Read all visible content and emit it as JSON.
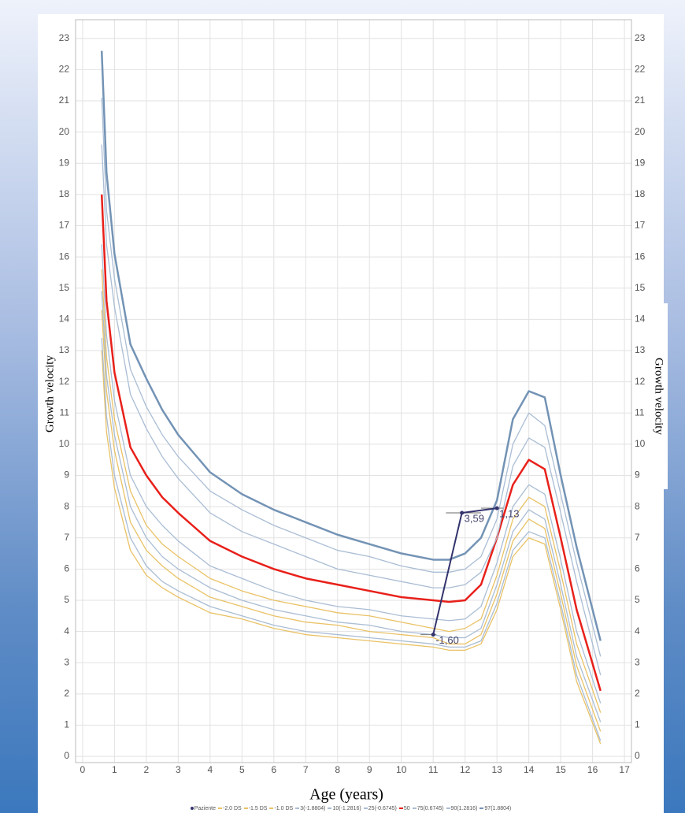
{
  "chart_data": {
    "type": "line",
    "x_label": "Age (years)",
    "y_label": "Growth velocity",
    "y2_label": "Growth velocity",
    "xlim": [
      -0.22,
      17.22
    ],
    "ylim": [
      -0.2,
      23.6
    ],
    "xticks": [
      0,
      1,
      2,
      3,
      4,
      5,
      6,
      7,
      8,
      9,
      10,
      11,
      12,
      13,
      14,
      15,
      16,
      17
    ],
    "yticks": [
      0,
      1,
      2,
      3,
      4,
      5,
      6,
      7,
      8,
      9,
      10,
      11,
      12,
      13,
      14,
      15,
      16,
      17,
      18,
      19,
      20,
      21,
      22,
      23
    ],
    "grid": true,
    "legend": "bottom",
    "x": [
      0.6,
      0.75,
      1,
      1.5,
      2,
      2.5,
      3,
      4,
      5,
      6,
      7,
      8,
      9,
      10,
      11,
      11.5,
      12,
      12.5,
      13,
      13.5,
      14,
      14.5,
      15,
      15.5,
      16.25
    ],
    "series": [
      {
        "name": "Paziente",
        "color": "#33336e",
        "x": [
          11,
          11.9,
          13
        ],
        "values": [
          3.9,
          7.8,
          7.95
        ],
        "point_labels": [
          "-1,60",
          "3,59",
          "1,13"
        ],
        "x_intervals": [
          [
            10.6,
            11.1
          ],
          [
            11.4,
            12.5
          ],
          [
            12.5,
            13.2
          ]
        ]
      },
      {
        "name": "-2.0 DS",
        "color": "#e9c266",
        "values": [
          13.0,
          10.4,
          8.6,
          6.6,
          5.8,
          5.4,
          5.1,
          4.6,
          4.4,
          4.1,
          3.9,
          3.8,
          3.7,
          3.6,
          3.5,
          3.4,
          3.4,
          3.6,
          4.7,
          6.4,
          7.0,
          6.8,
          4.7,
          2.4,
          0.4
        ]
      },
      {
        "name": "-1.5 DS",
        "color": "#e9c266",
        "values": [
          14.3,
          11.7,
          9.8,
          7.5,
          6.6,
          6.1,
          5.7,
          5.1,
          4.8,
          4.5,
          4.3,
          4.2,
          4.0,
          3.9,
          3.8,
          3.6,
          3.6,
          3.9,
          5.2,
          6.9,
          7.6,
          7.3,
          5.2,
          2.9,
          0.8
        ]
      },
      {
        "name": "-1.0 DS",
        "color": "#e9c266",
        "values": [
          15.6,
          12.8,
          10.8,
          8.5,
          7.4,
          6.8,
          6.4,
          5.7,
          5.3,
          5.0,
          4.8,
          4.6,
          4.5,
          4.3,
          4.1,
          4.0,
          4.1,
          4.4,
          5.8,
          7.6,
          8.3,
          8.0,
          5.9,
          3.6,
          1.4
        ]
      },
      {
        "name": "3(-1.8804)",
        "color": "#aabdd4",
        "values": [
          13.4,
          10.9,
          9.0,
          7.0,
          6.1,
          5.6,
          5.3,
          4.8,
          4.5,
          4.2,
          4.0,
          3.9,
          3.8,
          3.7,
          3.6,
          3.5,
          3.5,
          3.7,
          4.9,
          6.6,
          7.2,
          7.0,
          4.9,
          2.6,
          0.5
        ]
      },
      {
        "name": "10(-1.2816)",
        "color": "#aabdd4",
        "values": [
          14.9,
          12.2,
          10.3,
          8.0,
          7.0,
          6.4,
          6.0,
          5.4,
          5.0,
          4.7,
          4.5,
          4.3,
          4.2,
          4.0,
          3.9,
          3.8,
          3.8,
          4.1,
          5.5,
          7.2,
          7.9,
          7.6,
          5.5,
          3.2,
          1.1
        ]
      },
      {
        "name": "25(-0.6745)",
        "color": "#aabdd4",
        "values": [
          16.4,
          13.5,
          11.4,
          9.0,
          8.0,
          7.4,
          6.9,
          6.1,
          5.7,
          5.3,
          5.0,
          4.8,
          4.7,
          4.5,
          4.4,
          4.35,
          4.4,
          4.8,
          6.2,
          8.0,
          8.7,
          8.4,
          6.3,
          4.0,
          1.7
        ]
      },
      {
        "name": "50",
        "color": "#e8201a",
        "values": [
          18.0,
          14.6,
          12.3,
          9.9,
          9.0,
          8.3,
          7.8,
          6.9,
          6.4,
          6.0,
          5.7,
          5.5,
          5.3,
          5.1,
          5.0,
          4.95,
          5.0,
          5.5,
          7.0,
          8.7,
          9.5,
          9.2,
          7.0,
          4.7,
          2.1
        ]
      },
      {
        "name": "75(0.6745)",
        "color": "#aabdd4",
        "values": [
          19.6,
          16.4,
          14.4,
          11.6,
          10.5,
          9.6,
          8.9,
          7.8,
          7.2,
          6.8,
          6.4,
          6.0,
          5.8,
          5.6,
          5.4,
          5.4,
          5.5,
          5.9,
          7.0,
          9.3,
          10.2,
          9.9,
          7.8,
          5.6,
          2.6
        ]
      },
      {
        "name": "90(1.2816)",
        "color": "#aabdd4",
        "values": [
          21.1,
          17.5,
          15.3,
          12.4,
          11.2,
          10.3,
          9.6,
          8.5,
          7.9,
          7.4,
          7.0,
          6.6,
          6.4,
          6.1,
          5.9,
          5.9,
          6.0,
          6.4,
          7.6,
          10.0,
          11.0,
          10.6,
          8.4,
          6.2,
          3.2
        ]
      },
      {
        "name": "97(1.8804)",
        "color": "#7393b5",
        "values": [
          22.6,
          18.7,
          16.1,
          13.2,
          12.1,
          11.1,
          10.3,
          9.1,
          8.4,
          7.9,
          7.5,
          7.1,
          6.8,
          6.5,
          6.3,
          6.3,
          6.5,
          7.0,
          8.2,
          10.8,
          11.7,
          11.5,
          9.0,
          6.7,
          3.7
        ]
      }
    ]
  }
}
